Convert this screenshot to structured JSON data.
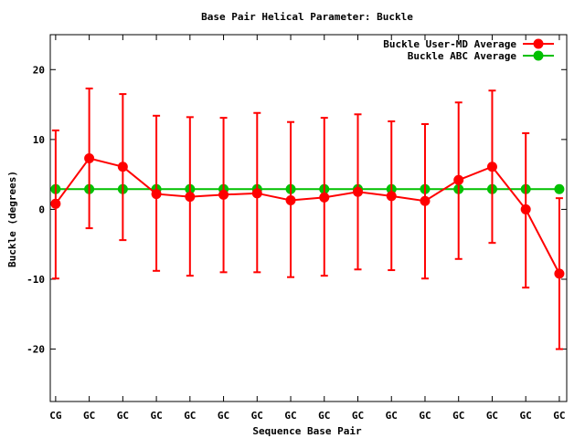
{
  "chart_data": {
    "type": "line",
    "title": "Base Pair Helical Parameter: Buckle",
    "xlabel": "Sequence Base Pair",
    "ylabel": "Buckle (degrees)",
    "ylim": [
      -27.5,
      25
    ],
    "yticks": [
      -20,
      -10,
      0,
      10,
      20
    ],
    "grid": false,
    "legend_position": "top-right",
    "categories": [
      "CG",
      "GC",
      "GC",
      "GC",
      "GC",
      "GC",
      "GC",
      "GC",
      "GC",
      "GC",
      "GC",
      "GC",
      "GC",
      "GC",
      "GC",
      "GC"
    ],
    "series": [
      {
        "name": "Buckle User-MD Average",
        "color": "#ff0000",
        "values": [
          0.8,
          7.3,
          6.1,
          2.2,
          1.8,
          2.1,
          2.3,
          1.3,
          1.7,
          2.5,
          1.9,
          1.2,
          4.2,
          6.1,
          0.0,
          -9.2
        ],
        "err_high": [
          11.3,
          17.3,
          16.5,
          13.4,
          13.2,
          13.1,
          13.8,
          12.5,
          13.1,
          13.6,
          12.6,
          12.2,
          15.3,
          17.0,
          10.9,
          1.6
        ],
        "err_low": [
          -9.9,
          -2.7,
          -4.4,
          -8.8,
          -9.5,
          -9.0,
          -9.0,
          -9.7,
          -9.5,
          -8.6,
          -8.7,
          -9.9,
          -7.1,
          -4.8,
          -11.2,
          -20.0
        ]
      },
      {
        "name": "Buckle ABC Average",
        "color": "#00c000",
        "values": [
          2.9,
          2.9,
          2.9,
          2.9,
          2.9,
          2.9,
          2.9,
          2.9,
          2.9,
          2.9,
          2.9,
          2.9,
          2.9,
          2.9,
          2.9,
          2.9
        ]
      }
    ]
  }
}
